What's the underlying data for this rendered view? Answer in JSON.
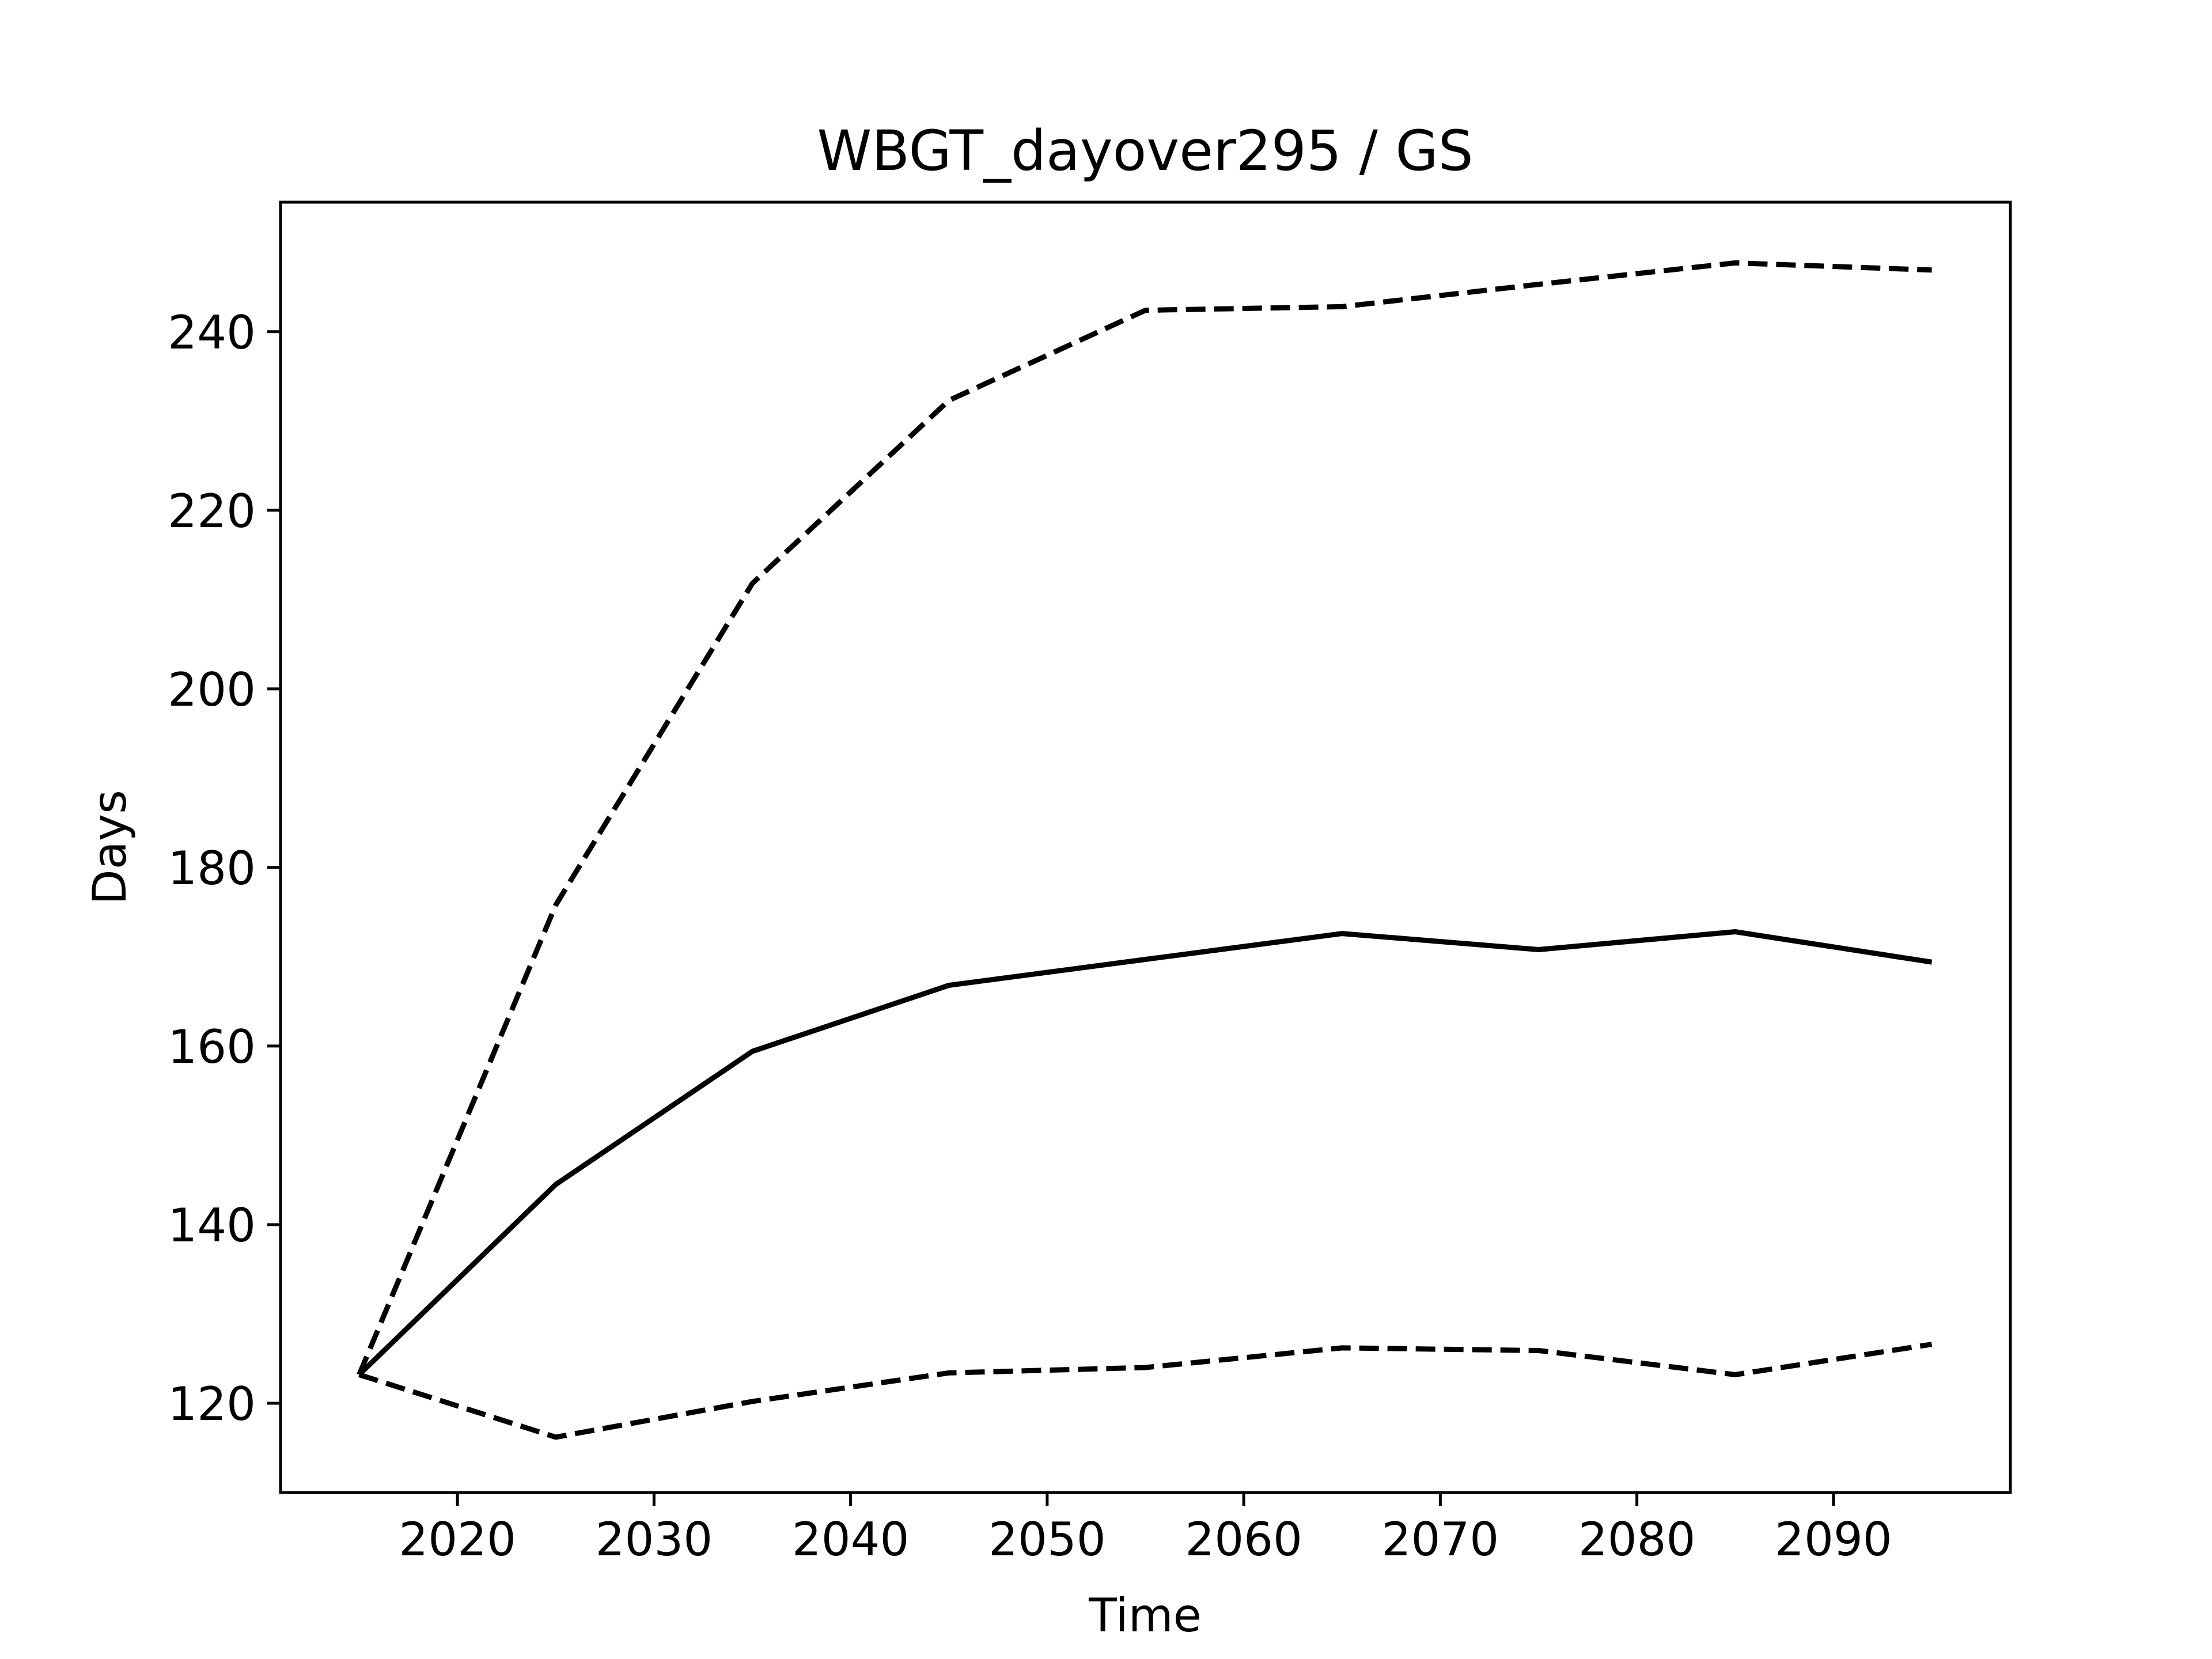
{
  "chart_data": {
    "type": "line",
    "title": "WBGT_dayover295 / GS",
    "xlabel": "Time",
    "ylabel": "Days",
    "xlim": [
      2011,
      2099
    ],
    "ylim": [
      110,
      254.5
    ],
    "xticks": [
      2020,
      2030,
      2040,
      2050,
      2060,
      2070,
      2080,
      2090
    ],
    "yticks": [
      120,
      140,
      160,
      180,
      200,
      220,
      240
    ],
    "grid": false,
    "x": [
      2015,
      2025,
      2035,
      2045,
      2055,
      2065,
      2075,
      2085,
      2095
    ],
    "series": [
      {
        "style": "solid",
        "color": "#000000",
        "values": [
          123.2,
          144.5,
          159.4,
          166.8,
          169.7,
          172.6,
          170.8,
          172.8,
          169.4
        ]
      },
      {
        "style": "dashed",
        "color": "#000000",
        "values": [
          123.2,
          175.8,
          211.8,
          232.3,
          242.4,
          242.8,
          245.3,
          247.7,
          246.9
        ]
      },
      {
        "style": "dashed",
        "color": "#000000",
        "values": [
          123.2,
          116.2,
          120.2,
          123.4,
          124.0,
          126.2,
          125.9,
          123.2,
          126.6
        ]
      }
    ]
  }
}
